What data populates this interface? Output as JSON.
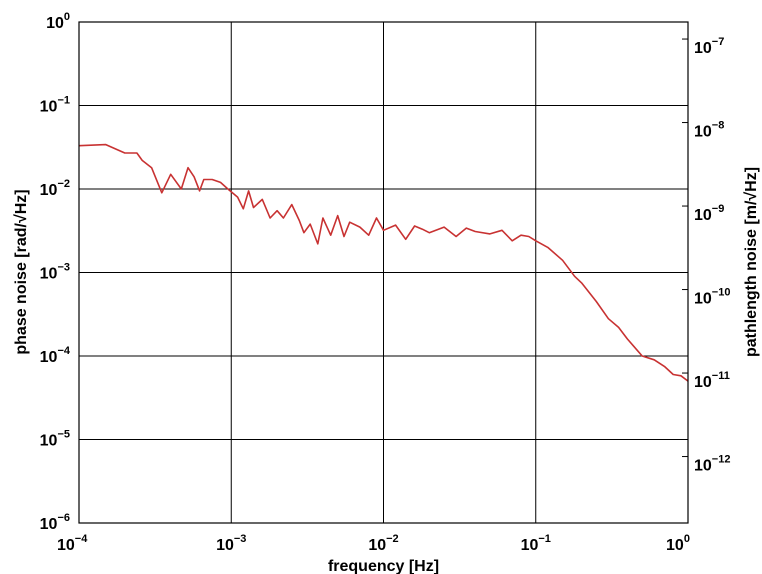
{
  "chart_data": {
    "type": "line",
    "xlabel": "frequency [Hz]",
    "ylabel": "phase noise [rad/√Hz]",
    "ylabel_right": "pathlength noise [m/√Hz]",
    "x_scale": "log",
    "y_scale": "log",
    "xlim": [
      0.0001,
      1
    ],
    "ylim": [
      1e-06,
      1
    ],
    "ylim_right": [
      1.6e-13,
      1.6e-07
    ],
    "grid": true,
    "x_ticks": [
      {
        "base": "10",
        "exp": "−4",
        "value": 0.0001
      },
      {
        "base": "10",
        "exp": "−3",
        "value": 0.001
      },
      {
        "base": "10",
        "exp": "−2",
        "value": 0.01
      },
      {
        "base": "10",
        "exp": "−1",
        "value": 0.1
      },
      {
        "base": "10",
        "exp": "0",
        "value": 1
      }
    ],
    "y_ticks": [
      {
        "base": "10",
        "exp": "0",
        "value": 1
      },
      {
        "base": "10",
        "exp": "−1",
        "value": 0.1
      },
      {
        "base": "10",
        "exp": "−2",
        "value": 0.01
      },
      {
        "base": "10",
        "exp": "−3",
        "value": 0.001
      },
      {
        "base": "10",
        "exp": "−4",
        "value": 0.0001
      },
      {
        "base": "10",
        "exp": "−5",
        "value": 1e-05
      },
      {
        "base": "10",
        "exp": "−6",
        "value": 1e-06
      }
    ],
    "y_ticks_right": [
      {
        "base": "10",
        "exp": "−7",
        "value": 1e-07
      },
      {
        "base": "10",
        "exp": "−8",
        "value": 1e-08
      },
      {
        "base": "10",
        "exp": "−9",
        "value": 1e-09
      },
      {
        "base": "10",
        "exp": "−10",
        "value": 1e-10
      },
      {
        "base": "10",
        "exp": "−11",
        "value": 1e-11
      },
      {
        "base": "10",
        "exp": "−12",
        "value": 1e-12
      }
    ],
    "series": [
      {
        "color": "#c83232",
        "x": [
          0.0001,
          0.00015,
          0.0002,
          0.00024,
          0.00026,
          0.0003,
          0.00035,
          0.0004,
          0.00047,
          0.00052,
          0.00057,
          0.00062,
          0.00066,
          0.00075,
          0.00085,
          0.00095,
          0.0011,
          0.0012,
          0.0013,
          0.0014,
          0.0016,
          0.0018,
          0.002,
          0.0022,
          0.0025,
          0.0028,
          0.003,
          0.0033,
          0.0037,
          0.004,
          0.0045,
          0.005,
          0.0055,
          0.006,
          0.007,
          0.008,
          0.009,
          0.01,
          0.012,
          0.014,
          0.016,
          0.018,
          0.02,
          0.025,
          0.03,
          0.035,
          0.04,
          0.05,
          0.06,
          0.07,
          0.08,
          0.09,
          0.1,
          0.12,
          0.15,
          0.18,
          0.2,
          0.25,
          0.3,
          0.35,
          0.4,
          0.5,
          0.6,
          0.7,
          0.8,
          0.9,
          1
        ],
        "y": [
          0.033,
          0.034,
          0.027,
          0.027,
          0.022,
          0.018,
          0.009,
          0.015,
          0.01,
          0.018,
          0.014,
          0.0095,
          0.013,
          0.013,
          0.012,
          0.01,
          0.008,
          0.0058,
          0.0095,
          0.006,
          0.0075,
          0.0045,
          0.0055,
          0.0045,
          0.0065,
          0.0042,
          0.003,
          0.0038,
          0.0022,
          0.0045,
          0.0028,
          0.0048,
          0.0027,
          0.004,
          0.0035,
          0.0028,
          0.0045,
          0.0032,
          0.0037,
          0.0025,
          0.0036,
          0.0033,
          0.003,
          0.0035,
          0.0027,
          0.0034,
          0.0031,
          0.0029,
          0.0032,
          0.0024,
          0.0028,
          0.0027,
          0.0024,
          0.002,
          0.0014,
          0.0009,
          0.00075,
          0.00045,
          0.00028,
          0.00022,
          0.00016,
          0.0001,
          9e-05,
          7.5e-05,
          6e-05,
          5.8e-05,
          5e-05
        ]
      }
    ]
  }
}
